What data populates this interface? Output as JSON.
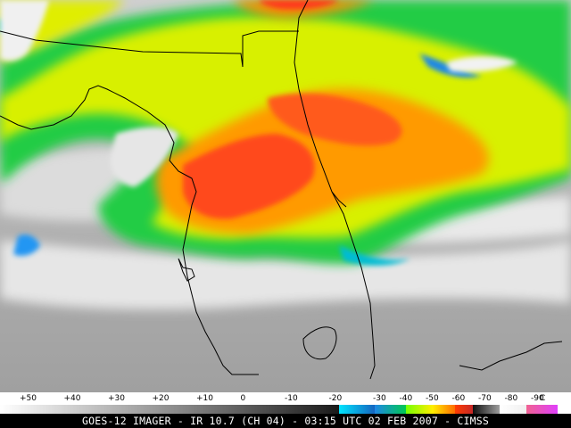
{
  "caption": "GOES-12 IMAGER - IR 10.7 (CH 04) - 03:15 UTC 02 FEB 2007 - CIMSS",
  "scale": {
    "ticks": [
      {
        "label": "+50",
        "value": 50
      },
      {
        "label": "+40",
        "value": 40
      },
      {
        "label": "+30",
        "value": 30
      },
      {
        "label": "+20",
        "value": 20
      },
      {
        "label": "+10",
        "value": 10
      },
      {
        "label": "0",
        "value": 0
      },
      {
        "label": "-10",
        "value": -10
      },
      {
        "label": "-20",
        "value": -20
      },
      {
        "label": "-30",
        "value": -30
      },
      {
        "label": "-40",
        "value": -40
      },
      {
        "label": "-50",
        "value": -50
      },
      {
        "label": "-60",
        "value": -60
      },
      {
        "label": "-70",
        "value": -70
      },
      {
        "label": "-80",
        "value": -80
      },
      {
        "label": "-90",
        "value": -90
      }
    ],
    "unit": "C",
    "colors": [
      "#e8e8e8",
      "#bdbdbd",
      "#8a8a8a",
      "#00bcd4",
      "#1565c0",
      "#00c853",
      "#c6ff00",
      "#ffee00",
      "#ff8f00",
      "#e00000",
      "#111111",
      "#f8f8f8",
      "#e040fb"
    ]
  },
  "colors": {
    "warm_ground": "#b3b3b3",
    "cloud_high": "#f2f2f2",
    "cold_green": "#22cc44",
    "cold_yellow": "#e8f000",
    "cold_orange": "#ff9a00",
    "cold_red": "#ff3a1a",
    "coastline": "#000000"
  }
}
